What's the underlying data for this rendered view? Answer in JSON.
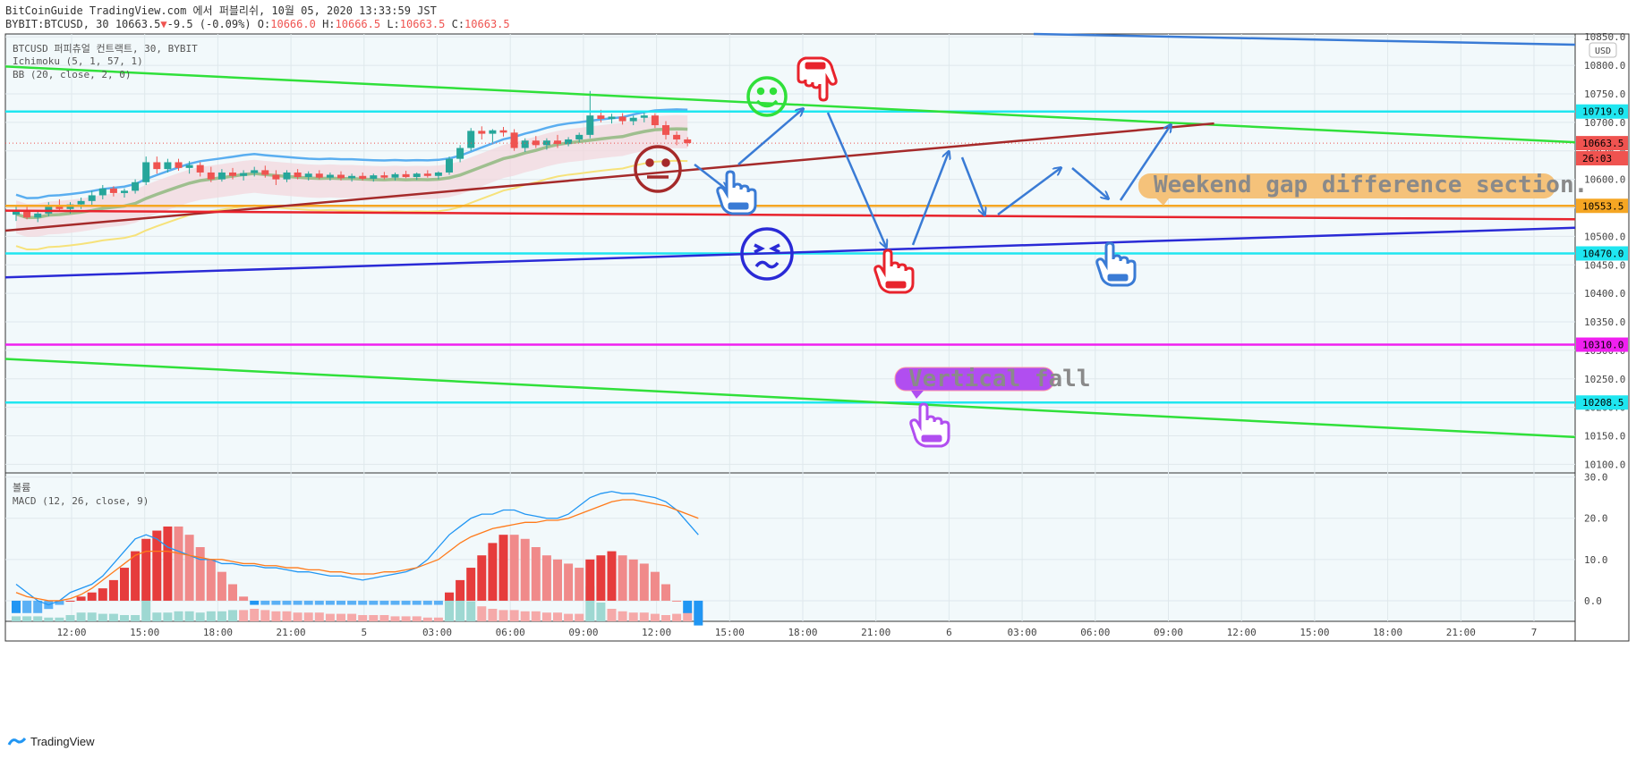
{
  "header": {
    "line1": "BitCoinGuide TradingView.com 에서 퍼블리쉬, 10월 05, 2020 13:33:59 JST",
    "symbol": "BYBIT:BTCUSD, 30",
    "price": "10663.5",
    "change": "-9.5 (-0.09%)",
    "o_label": "O:",
    "o": "10666.0",
    "h_label": "H:",
    "h": "10666.5",
    "l_label": "L:",
    "l": "10663.5",
    "c_label": "C:",
    "c": "10663.5"
  },
  "legend": {
    "title": "BTCUSD 퍼피츄얼 컨트랙트, 30, BYBIT",
    "ichimoku": "Ichimoku (5, 1, 57, 1)",
    "bb": "BB (20, close, 2, 0)",
    "volume": "볼륨",
    "macd": "MACD (12, 26, close, 9)"
  },
  "footer": {
    "brand": "TradingView"
  },
  "colors": {
    "cyan": "#1fe6f0",
    "green": "#30e03a",
    "darkred": "#a52a2a",
    "red": "#e8232c",
    "blue": "#2a2ad6",
    "magenta": "#f020f0",
    "orange": "#f5a623",
    "arrow": "#3a7bd5",
    "label_orange": "#f5c27a",
    "label_purple": "#b14ef0"
  },
  "icons": [
    "smiley-happy-icon",
    "smiley-neutral-icon",
    "smiley-confused-icon",
    "pointing-hand-icon"
  ],
  "chart_data": [
    {
      "type": "candlestick",
      "panel": "price",
      "unit": "USD",
      "ylim": [
        10085,
        10855
      ],
      "x_ticks": [
        "12:00",
        "15:00",
        "18:00",
        "21:00",
        "5",
        "03:00",
        "06:00",
        "09:00",
        "12:00",
        "15:00",
        "18:00",
        "21:00",
        "6",
        "03:00",
        "06:00",
        "09:00",
        "12:00",
        "15:00",
        "18:00",
        "21:00",
        "7"
      ],
      "y_ticks": [
        10100,
        10150,
        10200,
        10250,
        10300,
        10350,
        10400,
        10450,
        10500,
        10550,
        10600,
        10650,
        10700,
        10750,
        10800,
        10850
      ],
      "y_tick_labels": [
        "10100.0",
        "10150.0",
        "10200.0",
        "10250.0",
        "10300.0",
        "10350.0",
        "10400.0",
        "10450.0",
        "10500.0",
        "10550.0",
        "10600.0",
        "10650.0",
        "10700.0",
        "10750.0",
        "10800.0",
        "10850.0"
      ],
      "price_tags": [
        {
          "label": "10719.0",
          "value": 10719.0,
          "color": "#1fe6f0"
        },
        {
          "label": "10663.5",
          "value": 10663.5,
          "color": "#ef5350"
        },
        {
          "label": "26:03",
          "value": 10637,
          "color": "#ef5350"
        },
        {
          "label": "10553.5",
          "value": 10553.5,
          "color": "#f5a623"
        },
        {
          "label": "10470.0",
          "value": 10470.0,
          "color": "#1fe6f0"
        },
        {
          "label": "10310.0",
          "value": 10310.0,
          "color": "#f020f0"
        },
        {
          "label": "10208.5",
          "value": 10208.5,
          "color": "#1fe6f0"
        }
      ],
      "horizontal_levels": [
        10719.0,
        10553.5,
        10470.0,
        10310.0,
        10208.5
      ],
      "candles_ohlc": [
        [
          10538,
          10552,
          10527,
          10545
        ],
        [
          10545,
          10552,
          10530,
          10533
        ],
        [
          10533,
          10545,
          10525,
          10540
        ],
        [
          10540,
          10560,
          10535,
          10555
        ],
        [
          10555,
          10565,
          10545,
          10548
        ],
        [
          10548,
          10560,
          10540,
          10556
        ],
        [
          10556,
          10568,
          10548,
          10562
        ],
        [
          10562,
          10580,
          10555,
          10572
        ],
        [
          10572,
          10590,
          10565,
          10584
        ],
        [
          10584,
          10588,
          10570,
          10576
        ],
        [
          10576,
          10584,
          10568,
          10580
        ],
        [
          10580,
          10600,
          10575,
          10595
        ],
        [
          10595,
          10640,
          10590,
          10630
        ],
        [
          10630,
          10640,
          10610,
          10618
        ],
        [
          10618,
          10636,
          10612,
          10630
        ],
        [
          10630,
          10636,
          10615,
          10620
        ],
        [
          10620,
          10632,
          10610,
          10625
        ],
        [
          10625,
          10630,
          10605,
          10612
        ],
        [
          10612,
          10622,
          10595,
          10600
        ],
        [
          10600,
          10618,
          10596,
          10612
        ],
        [
          10612,
          10620,
          10600,
          10606
        ],
        [
          10606,
          10616,
          10598,
          10611
        ],
        [
          10611,
          10622,
          10605,
          10616
        ],
        [
          10616,
          10624,
          10603,
          10608
        ],
        [
          10608,
          10616,
          10590,
          10600
        ],
        [
          10600,
          10616,
          10595,
          10612
        ],
        [
          10612,
          10618,
          10600,
          10604
        ],
        [
          10604,
          10614,
          10598,
          10610
        ],
        [
          10610,
          10616,
          10600,
          10603
        ],
        [
          10603,
          10612,
          10598,
          10608
        ],
        [
          10608,
          10614,
          10598,
          10602
        ],
        [
          10602,
          10610,
          10596,
          10606
        ],
        [
          10606,
          10612,
          10598,
          10601
        ],
        [
          10601,
          10610,
          10596,
          10607
        ],
        [
          10607,
          10613,
          10600,
          10603
        ],
        [
          10603,
          10612,
          10598,
          10609
        ],
        [
          10609,
          10615,
          10602,
          10604
        ],
        [
          10604,
          10612,
          10599,
          10610
        ],
        [
          10610,
          10616,
          10603,
          10606
        ],
        [
          10606,
          10614,
          10600,
          10612
        ],
        [
          10612,
          10640,
          10608,
          10636
        ],
        [
          10636,
          10660,
          10630,
          10655
        ],
        [
          10655,
          10690,
          10650,
          10685
        ],
        [
          10685,
          10693,
          10670,
          10680
        ],
        [
          10680,
          10688,
          10665,
          10686
        ],
        [
          10686,
          10692,
          10675,
          10682
        ],
        [
          10682,
          10688,
          10650,
          10655
        ],
        [
          10655,
          10672,
          10648,
          10668
        ],
        [
          10668,
          10676,
          10655,
          10660
        ],
        [
          10660,
          10672,
          10652,
          10668
        ],
        [
          10668,
          10678,
          10655,
          10662
        ],
        [
          10662,
          10674,
          10658,
          10670
        ],
        [
          10670,
          10682,
          10665,
          10678
        ],
        [
          10678,
          10755,
          10672,
          10712
        ],
        [
          10712,
          10722,
          10700,
          10706
        ],
        [
          10706,
          10715,
          10698,
          10710
        ],
        [
          10710,
          10716,
          10696,
          10702
        ],
        [
          10702,
          10712,
          10695,
          10708
        ],
        [
          10708,
          10718,
          10700,
          10712
        ],
        [
          10712,
          10716,
          10690,
          10695
        ],
        [
          10695,
          10702,
          10670,
          10678
        ],
        [
          10678,
          10684,
          10660,
          10670
        ],
        [
          10670,
          10674,
          10658,
          10663.5
        ]
      ],
      "trendlines": [
        {
          "name": "",
          "color": "#30e03a",
          "from": [
            0,
            10798
          ],
          "to": [
            1,
            10665
          ]
        },
        {
          "name": "",
          "color": "#30e03a",
          "from": [
            0,
            10285
          ],
          "to": [
            1,
            10148
          ]
        },
        {
          "name": "",
          "color": "#a52a2a",
          "from": [
            0,
            10510
          ],
          "to": [
            0.77,
            10698
          ]
        },
        {
          "name": "",
          "color": "#e8232c",
          "from": [
            0,
            10545
          ],
          "to": [
            1,
            10530
          ]
        },
        {
          "name": "",
          "color": "#2a2ad6",
          "from": [
            0,
            10428
          ],
          "to": [
            1,
            10515
          ]
        }
      ],
      "annotations": [
        {
          "text": "Weekend gap difference section.",
          "kind": "label",
          "color": "#f5c27a"
        },
        {
          "text": "Vertical fall",
          "kind": "label",
          "color": "#b14ef0"
        }
      ]
    },
    {
      "type": "macd",
      "panel": "indicator",
      "ylim": [
        -5,
        31
      ],
      "y_ticks": [
        0,
        10,
        20,
        30
      ],
      "y_tick_labels": [
        "0.0",
        "10.0",
        "20.0",
        "30.0"
      ],
      "histogram": [
        -3,
        -3,
        -3,
        -2,
        -1,
        0,
        1,
        2,
        3,
        5,
        8,
        12,
        15,
        17,
        18,
        18,
        16,
        13,
        10,
        7,
        4,
        1,
        -1,
        -1,
        -1,
        -1,
        -1,
        -1,
        -1,
        -1,
        -1,
        -1,
        -1,
        -1,
        -1,
        -1,
        -1,
        -1,
        -1,
        -1,
        2,
        5,
        8,
        11,
        14,
        16,
        16,
        15,
        13,
        11,
        10,
        9,
        8,
        10,
        11,
        12,
        11,
        10,
        9,
        7,
        4,
        0,
        -3,
        -6
      ],
      "macd_line": [
        4,
        2,
        0,
        -1,
        0,
        2,
        3,
        4,
        6,
        9,
        12,
        15,
        16,
        15,
        13,
        12,
        11,
        10,
        10,
        9,
        9,
        8.5,
        8.5,
        8,
        8,
        7.5,
        7,
        7,
        6.5,
        6,
        6,
        5.5,
        5,
        5.5,
        6,
        6.5,
        7,
        8,
        10,
        13,
        16,
        18,
        20,
        21,
        21,
        22,
        22,
        21,
        20.5,
        20,
        20,
        21,
        23,
        25,
        26,
        26.5,
        26,
        26,
        25.5,
        25,
        24,
        22,
        19,
        16
      ],
      "signal_line": [
        2,
        1,
        0.5,
        0,
        0,
        0.5,
        1.5,
        3,
        5,
        7,
        9,
        11,
        12,
        12,
        12,
        11.5,
        11,
        10.5,
        10,
        10,
        9.5,
        9,
        9,
        8.5,
        8.5,
        8,
        8,
        7.5,
        7.5,
        7,
        7,
        6.5,
        6.5,
        6.5,
        7,
        7,
        7.5,
        8,
        9,
        10,
        12,
        14,
        15.5,
        16.5,
        17.5,
        18,
        18.5,
        19,
        19,
        19.5,
        19.5,
        20,
        21,
        22,
        23,
        24,
        24.5,
        24.5,
        24,
        23.5,
        23,
        22,
        21,
        20
      ],
      "volume": [
        4,
        4,
        4,
        3,
        3,
        5,
        7,
        7,
        6,
        6,
        5,
        5,
        25,
        7,
        7,
        8,
        8,
        7,
        8,
        8,
        9,
        9,
        10,
        9,
        8,
        8,
        7,
        7,
        7,
        6,
        6,
        6,
        5,
        5,
        5,
        4,
        4,
        4,
        3,
        3,
        20,
        18,
        16,
        12,
        10,
        9,
        9,
        8,
        8,
        7,
        7,
        6,
        6,
        28,
        15,
        10,
        8,
        7,
        7,
        6,
        5,
        6,
        8,
        9
      ],
      "volume_up_indices": [
        0,
        1,
        2,
        3,
        4,
        5,
        6,
        7,
        8,
        9,
        10,
        11,
        12,
        13,
        14,
        15,
        16,
        17,
        18,
        19,
        20,
        40,
        41,
        42,
        53,
        54
      ]
    }
  ]
}
